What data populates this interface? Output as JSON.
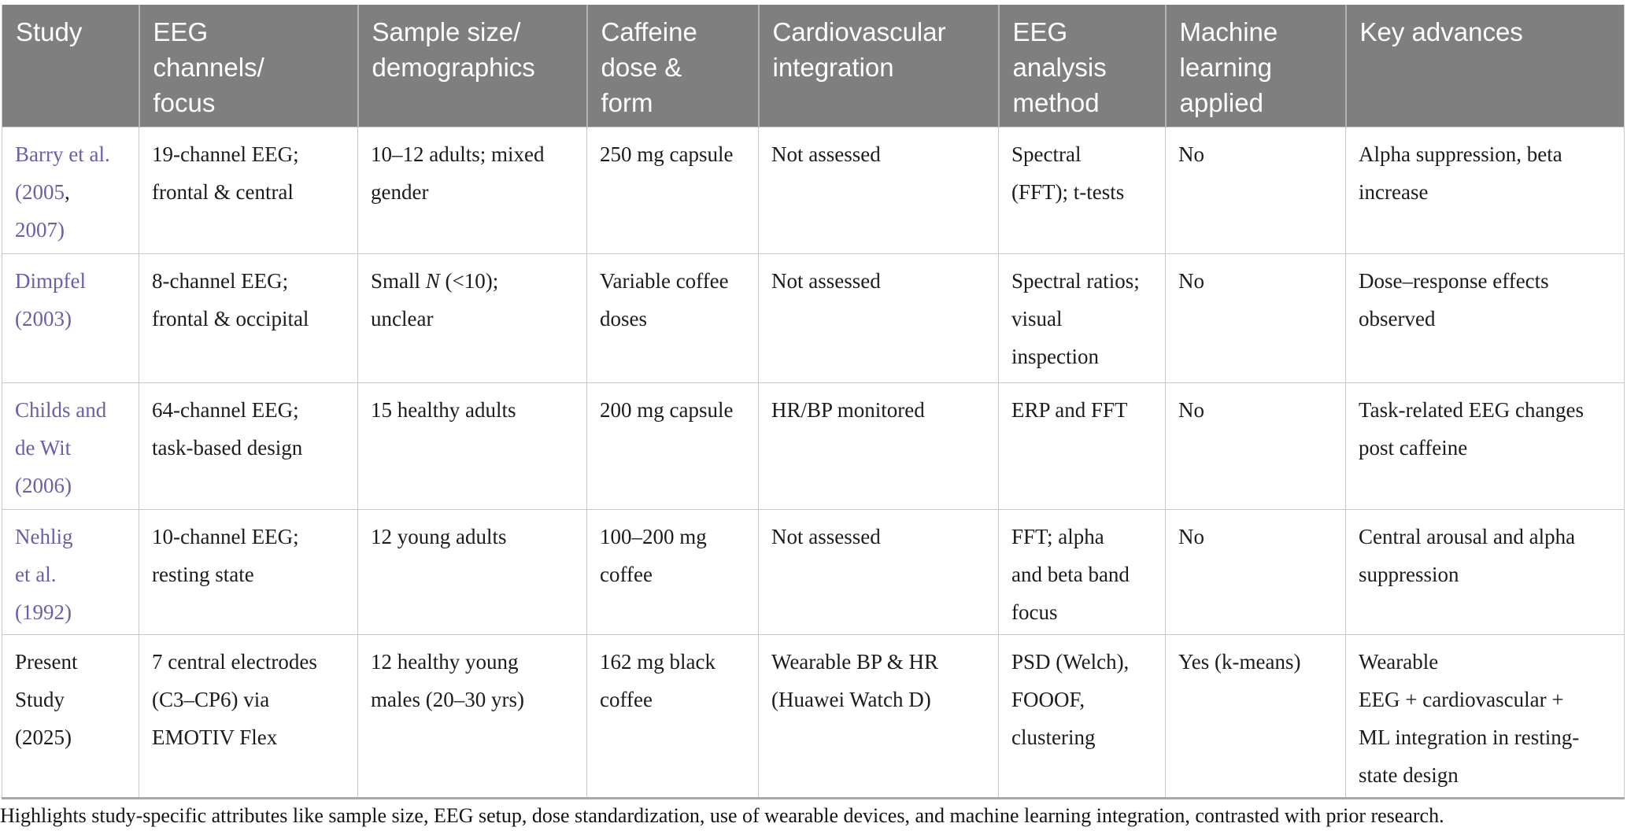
{
  "table": {
    "column_keys": [
      "study",
      "eeg-channels-focus",
      "sample-size-demographics",
      "caffeine-dose-form",
      "cardiovascular-integration",
      "eeg-analysis-method",
      "machine-learning-applied",
      "key-advances"
    ],
    "columns": [
      "Study",
      "EEG\nchannels/\nfocus",
      "Sample size/\ndemographics",
      "Caffeine\ndose &\nform",
      "Cardiovascular\nintegration",
      "EEG\nanalysis\nmethod",
      "Machine\nlearning\napplied",
      "Key advances"
    ],
    "rows": [
      {
        "cells": [
          [
            {
              "t": "Barry et al.\n(2005",
              "s": "link"
            },
            {
              "t": ","
            },
            {
              "t": "\n2007)",
              "s": "link"
            }
          ],
          [
            {
              "t": "19-channel EEG;\nfrontal & central"
            }
          ],
          [
            {
              "t": "10–12 adults; mixed\ngender"
            }
          ],
          [
            {
              "t": "250 mg capsule"
            }
          ],
          [
            {
              "t": "Not assessed"
            }
          ],
          [
            {
              "t": "Spectral\n(FFT); t-tests"
            }
          ],
          [
            {
              "t": "No"
            }
          ],
          [
            {
              "t": "Alpha suppression, beta\nincrease"
            }
          ]
        ]
      },
      {
        "cells": [
          [
            {
              "t": "Dimpfel\n(2003)",
              "s": "link"
            }
          ],
          [
            {
              "t": "8-channel EEG;\nfrontal & occipital"
            }
          ],
          [
            {
              "t": "Small "
            },
            {
              "t": "N",
              "s": "i"
            },
            {
              "t": " (<10);\nunclear"
            }
          ],
          [
            {
              "t": "Variable coffee\ndoses"
            }
          ],
          [
            {
              "t": "Not assessed"
            }
          ],
          [
            {
              "t": "Spectral ratios;\nvisual\ninspection"
            }
          ],
          [
            {
              "t": "No"
            }
          ],
          [
            {
              "t": "Dose–response effects\nobserved"
            }
          ]
        ]
      },
      {
        "cells": [
          [
            {
              "t": "Childs and\nde Wit\n(2006)",
              "s": "link"
            }
          ],
          [
            {
              "t": "64-channel EEG;\ntask-based design"
            }
          ],
          [
            {
              "t": "15 healthy adults"
            }
          ],
          [
            {
              "t": "200 mg capsule"
            }
          ],
          [
            {
              "t": "HR/BP monitored"
            }
          ],
          [
            {
              "t": "ERP and FFT"
            }
          ],
          [
            {
              "t": "No"
            }
          ],
          [
            {
              "t": "Task-related EEG changes\npost caffeine"
            }
          ]
        ]
      },
      {
        "cells": [
          [
            {
              "t": "Nehlig\net al.\n(1992)",
              "s": "link"
            }
          ],
          [
            {
              "t": "10-channel EEG;\nresting state"
            }
          ],
          [
            {
              "t": "12 young adults"
            }
          ],
          [
            {
              "t": "100–200 mg\ncoffee"
            }
          ],
          [
            {
              "t": "Not assessed"
            }
          ],
          [
            {
              "t": "FFT; alpha\nand beta band\nfocus"
            }
          ],
          [
            {
              "t": "No"
            }
          ],
          [
            {
              "t": "Central arousal and alpha\nsuppression"
            }
          ]
        ]
      },
      {
        "cells": [
          [
            {
              "t": "Present\nStudy\n(2025)"
            }
          ],
          [
            {
              "t": "7 central electrodes\n(C3–CP6) via\nEMOTIV Flex"
            }
          ],
          [
            {
              "t": "12 healthy young\nmales (20–30 yrs)"
            }
          ],
          [
            {
              "t": "162 mg black\ncoffee"
            }
          ],
          [
            {
              "t": "Wearable BP & HR\n(Huawei Watch D)"
            }
          ],
          [
            {
              "t": "PSD (Welch),\nFOOOF,\nclustering"
            }
          ],
          [
            {
              "t": "Yes (k-means)"
            }
          ],
          [
            {
              "t": "Wearable\nEEG + cardiovascular +\nML integration in resting-\nstate design"
            }
          ]
        ]
      }
    ]
  },
  "caption": "Highlights study-specific attributes like sample size, EEG setup, dose standardization, use of wearable devices, and machine learning integration, contrasted with prior research.",
  "colors": {
    "header_bg": "#7f7f7f",
    "header_text": "#ffffff",
    "header_divider": "#b3b3b3",
    "border": "#c9c9c9",
    "bottom_border": "#a8a8a8",
    "link": "#6c5fa7",
    "text": "#1c1c1c"
  }
}
